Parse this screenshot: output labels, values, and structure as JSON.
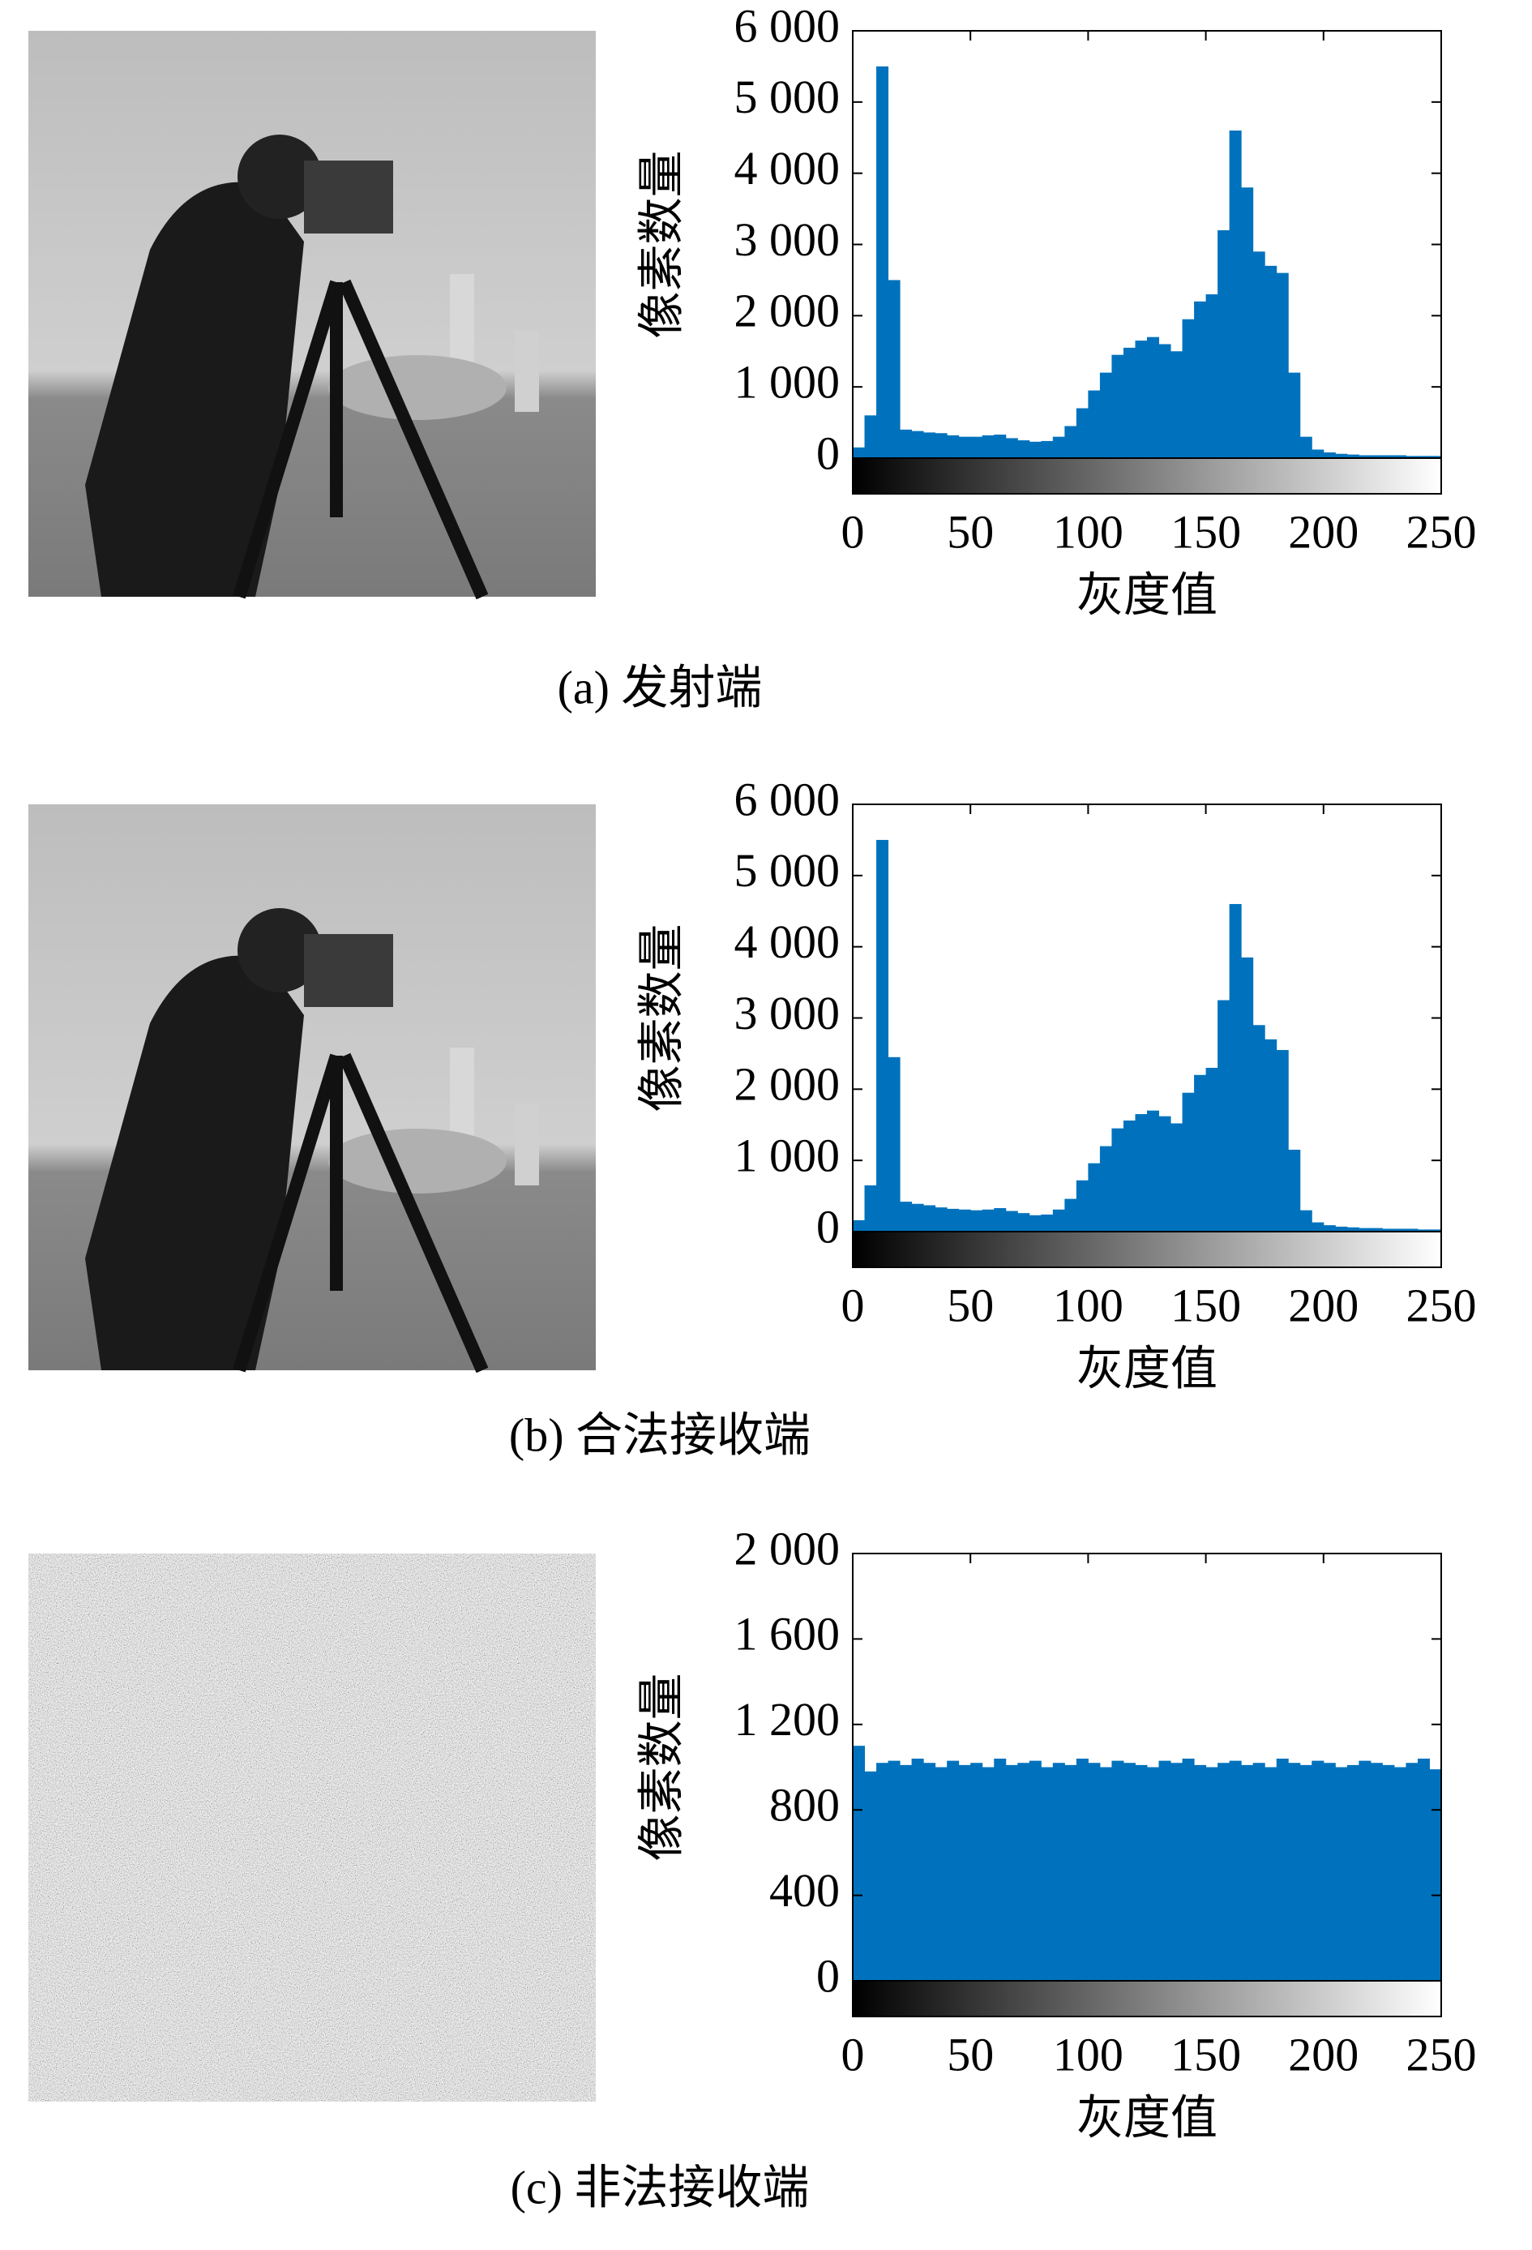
{
  "chart_data": [
    {
      "type": "histogram",
      "caption": "(a) 发射端",
      "xlabel": "灰度值",
      "ylabel": "像素数量",
      "color": "#0072bd",
      "bins": [
        0,
        5,
        10,
        15,
        20,
        25,
        30,
        35,
        40,
        45,
        50,
        55,
        60,
        65,
        70,
        75,
        80,
        85,
        90,
        95,
        100,
        105,
        110,
        115,
        120,
        125,
        130,
        135,
        140,
        145,
        150,
        155,
        160,
        165,
        170,
        175,
        180,
        185,
        190,
        195,
        200,
        205,
        210,
        215,
        220,
        225,
        230,
        235,
        240,
        245,
        250
      ],
      "values": [
        150,
        600,
        5500,
        2500,
        400,
        380,
        360,
        350,
        320,
        300,
        300,
        320,
        330,
        280,
        250,
        230,
        240,
        300,
        450,
        700,
        950,
        1200,
        1450,
        1550,
        1650,
        1700,
        1600,
        1500,
        1950,
        2200,
        2300,
        3200,
        4600,
        3800,
        2900,
        2700,
        2600,
        1200,
        300,
        120,
        80,
        60,
        50,
        40,
        40,
        40,
        40,
        30,
        30,
        30
      ],
      "xlim": [
        0,
        250
      ],
      "xticks": [
        0,
        50,
        100,
        150,
        200,
        250
      ],
      "ylim": [
        0,
        6000
      ],
      "yticks": [
        0,
        {
          "value": 1000,
          "label": "1 000"
        },
        {
          "value": 2000,
          "label": "2 000"
        },
        {
          "value": 3000,
          "label": "3 000"
        },
        {
          "value": 4000,
          "label": "4 000"
        },
        {
          "value": 5000,
          "label": "5 000"
        },
        {
          "value": 6000,
          "label": "6 000"
        }
      ]
    },
    {
      "type": "histogram",
      "caption": "(b) 合法接收端",
      "xlabel": "灰度值",
      "ylabel": "像素数量",
      "color": "#0072bd",
      "bins": [
        0,
        5,
        10,
        15,
        20,
        25,
        30,
        35,
        40,
        45,
        50,
        55,
        60,
        65,
        70,
        75,
        80,
        85,
        90,
        95,
        100,
        105,
        110,
        115,
        120,
        125,
        130,
        135,
        140,
        145,
        150,
        155,
        160,
        165,
        170,
        175,
        180,
        185,
        190,
        195,
        200,
        205,
        210,
        215,
        220,
        225,
        230,
        235,
        240,
        245,
        250
      ],
      "values": [
        160,
        650,
        5500,
        2450,
        420,
        390,
        370,
        340,
        320,
        310,
        300,
        310,
        330,
        290,
        260,
        230,
        240,
        310,
        460,
        720,
        960,
        1200,
        1450,
        1560,
        1650,
        1700,
        1620,
        1520,
        1950,
        2200,
        2300,
        3250,
        4600,
        3850,
        2900,
        2700,
        2550,
        1150,
        300,
        130,
        90,
        70,
        60,
        50,
        50,
        40,
        40,
        40,
        30,
        30
      ],
      "xlim": [
        0,
        250
      ],
      "xticks": [
        0,
        50,
        100,
        150,
        200,
        250
      ],
      "ylim": [
        0,
        6000
      ],
      "yticks": [
        0,
        {
          "value": 1000,
          "label": "1 000"
        },
        {
          "value": 2000,
          "label": "2 000"
        },
        {
          "value": 3000,
          "label": "3 000"
        },
        {
          "value": 4000,
          "label": "4 000"
        },
        {
          "value": 5000,
          "label": "5 000"
        },
        {
          "value": 6000,
          "label": "6 000"
        }
      ]
    },
    {
      "type": "histogram",
      "caption": "(c) 非法接收端",
      "xlabel": "灰度值",
      "ylabel": "像素数量",
      "color": "#0072bd",
      "bins": [
        0,
        5,
        10,
        15,
        20,
        25,
        30,
        35,
        40,
        45,
        50,
        55,
        60,
        65,
        70,
        75,
        80,
        85,
        90,
        95,
        100,
        105,
        110,
        115,
        120,
        125,
        130,
        135,
        140,
        145,
        150,
        155,
        160,
        165,
        170,
        175,
        180,
        185,
        190,
        195,
        200,
        205,
        210,
        215,
        220,
        225,
        230,
        235,
        240,
        245,
        250
      ],
      "values": [
        1100,
        980,
        1020,
        1030,
        1010,
        1040,
        1020,
        1000,
        1030,
        1010,
        1020,
        1000,
        1040,
        1010,
        1020,
        1030,
        1000,
        1020,
        1010,
        1040,
        1020,
        1000,
        1030,
        1020,
        1010,
        1000,
        1030,
        1020,
        1040,
        1010,
        1000,
        1020,
        1030,
        1010,
        1020,
        1000,
        1040,
        1020,
        1010,
        1030,
        1020,
        1000,
        1010,
        1030,
        1020,
        1010,
        1000,
        1020,
        1040,
        990
      ],
      "xlim": [
        0,
        250
      ],
      "xticks": [
        0,
        50,
        100,
        150,
        200,
        250
      ],
      "ylim": [
        0,
        2000
      ],
      "yticks": [
        0,
        400,
        800,
        {
          "value": 1200,
          "label": "1 200"
        },
        {
          "value": 1600,
          "label": "1 600"
        },
        {
          "value": 2000,
          "label": "2 000"
        }
      ]
    }
  ]
}
